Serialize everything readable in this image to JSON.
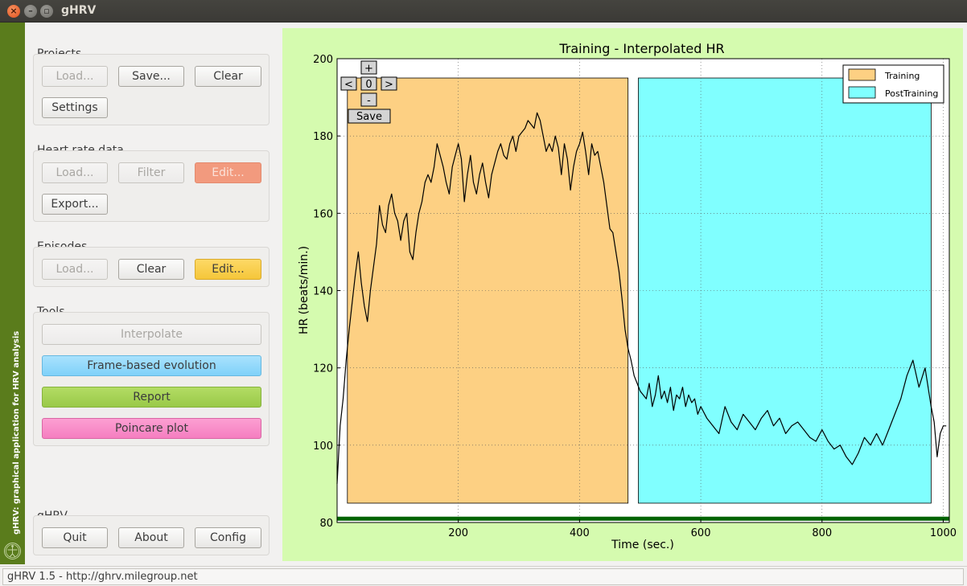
{
  "window": {
    "title": "gHRV",
    "close_glyph": "×",
    "min_glyph": "–",
    "max_glyph": "▫"
  },
  "sidebar": {
    "text": "gHRV: graphical application for HRV analysis",
    "logo_icon": "vitruvian-man-icon"
  },
  "projects": {
    "title": "Projects",
    "load": "Load...",
    "save": "Save...",
    "clear": "Clear",
    "settings": "Settings"
  },
  "heart_rate": {
    "title": "Heart rate data",
    "load": "Load...",
    "filter": "Filter",
    "edit": "Edit...",
    "export": "Export..."
  },
  "episodes": {
    "title": "Episodes",
    "load": "Load...",
    "clear": "Clear",
    "edit": "Edit..."
  },
  "tools": {
    "title": "Tools",
    "interpolate": "Interpolate",
    "frame_based": "Frame-based evolution",
    "report": "Report",
    "poincare": "Poincare plot"
  },
  "ghrv": {
    "title": "gHRV",
    "quit": "Quit",
    "about": "About",
    "config": "Config"
  },
  "plot_controls": {
    "plus": "+",
    "left": "<",
    "zero": "0",
    "right": ">",
    "minus": "-",
    "save": "Save"
  },
  "status": {
    "text": "gHRV 1.5 - http://ghrv.milegroup.net"
  },
  "colors": {
    "training": "#fdd083",
    "posttraining": "#80ffff",
    "panel": "#d5fbaf",
    "baseline": "#006400"
  },
  "chart_data": {
    "type": "line",
    "title": "Training - Interpolated HR",
    "xlabel": "Time (sec.)",
    "ylabel": "HR (beats/min.)",
    "xlim": [
      0,
      1010
    ],
    "ylim": [
      80,
      200
    ],
    "xticks": [
      "200",
      "400",
      "600",
      "800",
      "1000"
    ],
    "yticks": [
      "80",
      "100",
      "120",
      "140",
      "160",
      "180",
      "200"
    ],
    "grid": true,
    "legend_position": "top-right",
    "episodes": [
      {
        "name": "Training",
        "start": 17,
        "end": 480,
        "low": 85,
        "high": 195
      },
      {
        "name": "PostTraining",
        "start": 497,
        "end": 980,
        "low": 85,
        "high": 195
      }
    ],
    "baseline": {
      "y": 81
    },
    "series": [
      {
        "x": [
          0,
          5,
          10,
          15,
          20,
          25,
          30,
          35,
          40,
          45,
          50,
          55,
          60,
          65,
          70,
          75,
          80,
          85,
          90,
          95,
          100,
          105,
          110,
          115,
          120,
          125,
          130,
          135,
          140,
          145,
          150,
          155,
          160,
          165,
          170,
          175,
          180,
          185,
          190,
          195,
          200,
          205,
          210,
          215,
          220,
          225,
          230,
          235,
          240,
          245,
          250,
          255,
          260,
          265,
          270,
          275,
          280,
          285,
          290,
          295,
          300,
          305,
          310,
          315,
          320,
          325,
          330,
          335,
          340,
          345,
          350,
          355,
          360,
          365,
          370,
          375,
          380,
          385,
          390,
          395,
          400,
          405,
          410,
          415,
          420,
          425,
          430,
          435,
          440,
          445,
          450,
          455,
          460,
          465,
          470,
          475,
          480,
          485,
          490,
          495,
          500,
          505,
          510,
          515,
          520,
          525,
          530,
          535,
          540,
          545,
          550,
          555,
          560,
          565,
          570,
          575,
          580,
          585,
          590,
          595,
          600,
          610,
          620,
          630,
          640,
          650,
          660,
          670,
          680,
          690,
          700,
          710,
          720,
          730,
          740,
          750,
          760,
          770,
          780,
          790,
          800,
          810,
          820,
          830,
          840,
          850,
          860,
          870,
          880,
          890,
          900,
          910,
          920,
          930,
          940,
          950,
          960,
          970,
          980,
          985,
          990,
          995,
          1000,
          1005
        ],
        "y": [
          90,
          105,
          112,
          122,
          130,
          137,
          144,
          150,
          142,
          136,
          132,
          140,
          146,
          152,
          162,
          157,
          155,
          162,
          165,
          160,
          158,
          153,
          158,
          160,
          150,
          148,
          155,
          160,
          163,
          168,
          170,
          168,
          172,
          178,
          175,
          172,
          168,
          165,
          172,
          175,
          178,
          174,
          163,
          170,
          175,
          168,
          165,
          170,
          173,
          168,
          164,
          170,
          173,
          176,
          178,
          175,
          174,
          178,
          180,
          176,
          180,
          181,
          182,
          184,
          183,
          182,
          186,
          184,
          180,
          176,
          178,
          176,
          180,
          177,
          170,
          178,
          174,
          166,
          172,
          176,
          178,
          181,
          176,
          170,
          178,
          175,
          176,
          172,
          168,
          162,
          156,
          155,
          150,
          145,
          138,
          130,
          125,
          122,
          118,
          116,
          114,
          113,
          112,
          116,
          110,
          113,
          118,
          112,
          114,
          111,
          115,
          109,
          113,
          112,
          115,
          110,
          113,
          111,
          112,
          108,
          110,
          107,
          105,
          103,
          110,
          106,
          104,
          108,
          106,
          104,
          107,
          109,
          105,
          107,
          103,
          105,
          106,
          104,
          102,
          101,
          104,
          101,
          99,
          100,
          97,
          95,
          98,
          102,
          100,
          103,
          100,
          104,
          108,
          112,
          118,
          122,
          115,
          120,
          110,
          106,
          97,
          103,
          105,
          105
        ]
      }
    ]
  }
}
